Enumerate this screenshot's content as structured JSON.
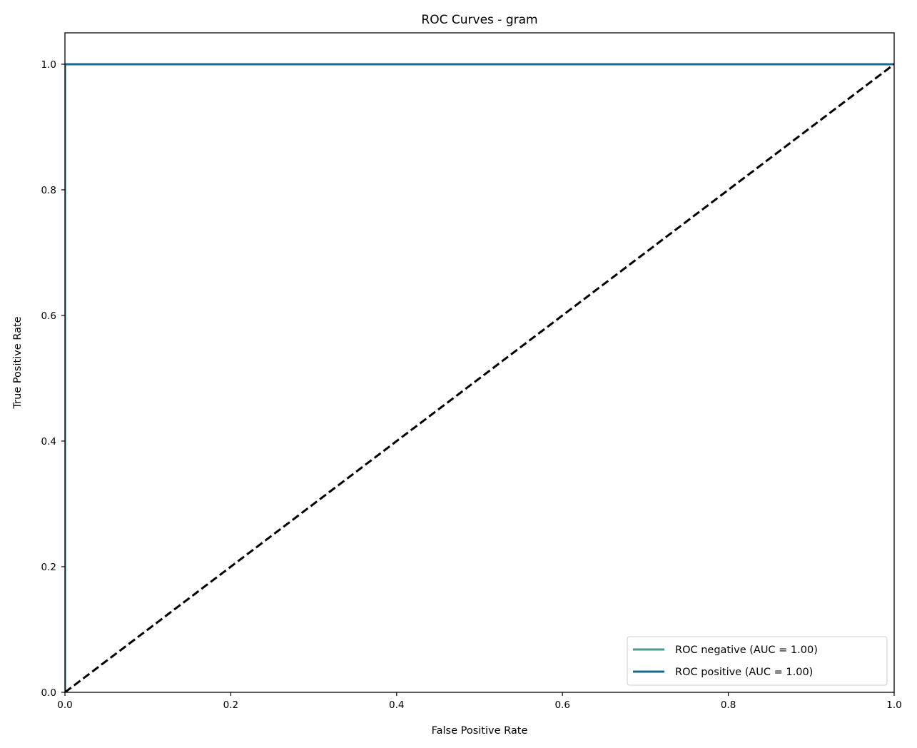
{
  "chart_data": {
    "type": "line",
    "title": "ROC Curves - gram",
    "xlabel": "False Positive Rate",
    "ylabel": "True Positive Rate",
    "xlim": [
      0,
      1
    ],
    "ylim": [
      0,
      1.05
    ],
    "xticks": [
      0.0,
      0.2,
      0.4,
      0.6,
      0.8,
      1.0
    ],
    "yticks": [
      0.0,
      0.2,
      0.4,
      0.6,
      0.8,
      1.0
    ],
    "xtick_labels": [
      "0.0",
      "0.2",
      "0.4",
      "0.6",
      "0.8",
      "1.0"
    ],
    "ytick_labels": [
      "0.0",
      "0.2",
      "0.4",
      "0.6",
      "0.8",
      "1.0"
    ],
    "grid": false,
    "legend_position": "lower-right",
    "series": [
      {
        "name": "ROC negative (AUC = 1.00)",
        "color": "#4c9a8f",
        "x": [
          0.0,
          0.0,
          1.0
        ],
        "y": [
          0.0,
          1.0,
          1.0
        ]
      },
      {
        "name": "ROC positive (AUC = 1.00)",
        "color": "#176b8e",
        "x": [
          0.0,
          0.0,
          1.0
        ],
        "y": [
          0.0,
          1.0,
          1.0
        ]
      }
    ],
    "reference_line": {
      "color": "#000000",
      "style": "dashed",
      "x": [
        0.0,
        1.0
      ],
      "y": [
        0.0,
        1.0
      ]
    }
  }
}
